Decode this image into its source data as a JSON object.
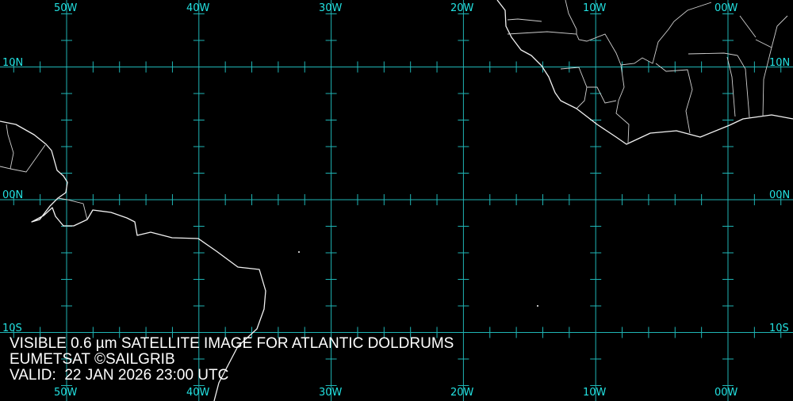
{
  "map": {
    "longitude_labels": [
      "50W",
      "40W",
      "30W",
      "20W",
      "10W",
      "00W"
    ],
    "latitude_labels": [
      "10N",
      "00N",
      "10S"
    ],
    "grid_color": "#1fb5b5",
    "label_color": "#22e0e0",
    "coast_color": "#f2f2f2"
  },
  "caption": {
    "line1": "VISIBLE 0.6 µm SATELLITE IMAGE FOR ATLANTIC DOLDRUMS",
    "line2": "EUMETSAT ©SAILGRIB",
    "line3": "VALID:  22 JAN 2026 23:00 UTC"
  }
}
